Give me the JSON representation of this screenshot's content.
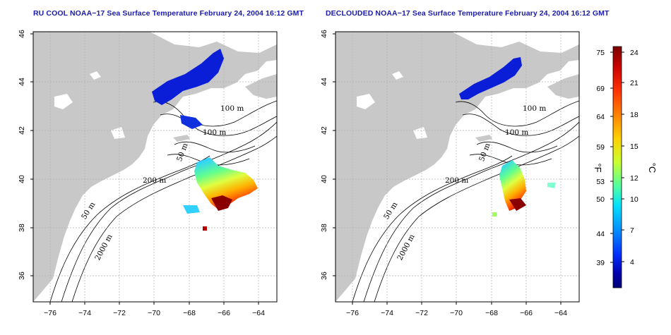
{
  "titles": {
    "left": "RU COOL NOAA−17 Sea Surface Temperature February 24, 2004 16:12 GMT",
    "right": "DECLOUDED NOAA−17 Sea Surface Temperature February 24, 2004 16:12 GMT"
  },
  "map": {
    "lon_range": [
      -77,
      -63
    ],
    "lat_range": [
      35,
      46
    ],
    "lon_ticks": [
      "−76",
      "−74",
      "−72",
      "−70",
      "−68",
      "−66",
      "−64"
    ],
    "lat_ticks": [
      "36",
      "38",
      "40",
      "42",
      "44",
      "46"
    ],
    "grid": "dotted",
    "land_color": "#c8c8c8",
    "ocean_color": "#ffffff"
  },
  "contour_labels": {
    "left": [
      "100 m",
      "100 m",
      "50 m",
      "200 m",
      "50 m",
      "2000 m"
    ],
    "right": [
      "100 m",
      "100 m",
      "50 m",
      "200 m",
      "50 m",
      "2000 m"
    ]
  },
  "colorbar": {
    "fahrenheit_ticks": [
      "75",
      "69",
      "64",
      "59",
      "53",
      "50",
      "44",
      "39"
    ],
    "celsius_ticks": [
      "24",
      "21",
      "18",
      "15",
      "12",
      "10",
      "7",
      "4"
    ],
    "unit_f": "°F",
    "unit_c": "°C",
    "colors": [
      "#7a0000",
      "#c80000",
      "#ff3000",
      "#ff8000",
      "#ffd000",
      "#c8ff30",
      "#50ffa0",
      "#00e0ff",
      "#0090ff",
      "#0030ff",
      "#0000b0",
      "#000078"
    ]
  }
}
